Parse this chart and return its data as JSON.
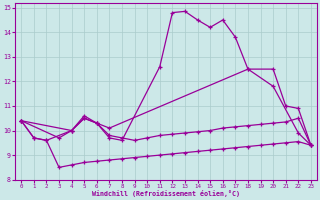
{
  "xlabel": "Windchill (Refroidissement éolien,°C)",
  "background_color": "#cce8e8",
  "grid_color": "#aacccc",
  "line_color": "#990099",
  "xlim": [
    -0.5,
    23.5
  ],
  "ylim": [
    8,
    15.2
  ],
  "yticks": [
    8,
    9,
    10,
    11,
    12,
    13,
    14,
    15
  ],
  "xticks": [
    0,
    1,
    2,
    3,
    4,
    5,
    6,
    7,
    8,
    9,
    10,
    11,
    12,
    13,
    14,
    15,
    16,
    17,
    18,
    19,
    20,
    21,
    22,
    23
  ],
  "curve1_x": [
    0,
    1,
    2,
    4,
    5,
    6,
    7,
    8,
    11,
    12,
    13,
    14,
    15,
    16,
    17,
    18,
    20,
    22,
    23
  ],
  "curve1_y": [
    10.4,
    9.7,
    9.6,
    10.0,
    10.6,
    10.3,
    9.7,
    9.6,
    12.6,
    14.8,
    14.85,
    14.5,
    14.2,
    14.5,
    13.8,
    12.5,
    11.8,
    9.9,
    9.4
  ],
  "curve2_x": [
    0,
    4,
    5,
    6,
    7,
    18,
    20,
    21,
    22,
    23
  ],
  "curve2_y": [
    10.4,
    10.0,
    10.5,
    10.3,
    10.1,
    12.5,
    12.5,
    11.0,
    10.9,
    9.4
  ],
  "curve3_x": [
    0,
    3,
    4,
    5,
    6,
    7,
    8,
    9,
    10,
    11,
    12,
    13,
    14,
    15,
    16,
    17,
    18,
    19,
    20,
    21,
    22,
    23
  ],
  "curve3_y": [
    10.4,
    9.7,
    10.0,
    10.5,
    10.3,
    9.8,
    9.7,
    9.6,
    9.7,
    9.8,
    9.85,
    9.9,
    9.95,
    10.0,
    10.1,
    10.15,
    10.2,
    10.25,
    10.3,
    10.35,
    10.5,
    9.4
  ],
  "curve4_x": [
    0,
    1,
    2,
    3,
    4,
    5,
    6,
    7,
    8,
    9,
    10,
    11,
    12,
    13,
    14,
    15,
    16,
    17,
    18,
    19,
    20,
    21,
    22,
    23
  ],
  "curve4_y": [
    10.4,
    9.7,
    9.6,
    8.5,
    8.6,
    8.7,
    8.75,
    8.8,
    8.85,
    8.9,
    8.95,
    9.0,
    9.05,
    9.1,
    9.15,
    9.2,
    9.25,
    9.3,
    9.35,
    9.4,
    9.45,
    9.5,
    9.55,
    9.4
  ]
}
